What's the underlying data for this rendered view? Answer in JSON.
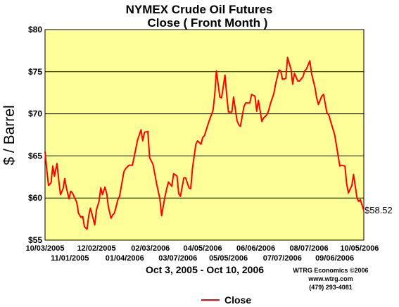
{
  "chart_data": {
    "type": "line",
    "title": "NYMEX Crude Oil Futures",
    "subtitle": "Close ( Front Month )",
    "xlabel": "Oct 3, 2005 - Oct 10, 2006",
    "ylabel": "$ / Barrel",
    "ylim": [
      55,
      80
    ],
    "yticks": [
      "$55",
      "$60",
      "$65",
      "$70",
      "$75",
      "$80"
    ],
    "xticks_upper": [
      "10/03/2005",
      "12/02/2005",
      "02/03/2006",
      "04/05/2006",
      "06/06/2006",
      "08/07/2006",
      "10/05/2006"
    ],
    "xticks_lower": [
      "11/01/2005",
      "01/04/2006",
      "03/07/2006",
      "05/05/2006",
      "07/07/2006",
      "09/06/2006"
    ],
    "x_start": "2005-10-03",
    "x_end": "2006-10-10",
    "grid": true,
    "legend": "bottom",
    "end_label": "$58.52",
    "credit": [
      "WTRG Economics ©2006",
      "www.wtrg.com",
      "(479) 293-4081"
    ],
    "colors": {
      "plot_background": "#ffff99",
      "line": "#ff0000"
    },
    "series": [
      {
        "name": "Close",
        "points": [
          [
            "2005-10-03",
            65.5
          ],
          [
            "2005-10-05",
            63.4
          ],
          [
            "2005-10-07",
            61.5
          ],
          [
            "2005-10-10",
            61.8
          ],
          [
            "2005-10-12",
            63.8
          ],
          [
            "2005-10-14",
            62.6
          ],
          [
            "2005-10-17",
            64.1
          ],
          [
            "2005-10-19",
            62.1
          ],
          [
            "2005-10-21",
            60.4
          ],
          [
            "2005-10-24",
            61.1
          ],
          [
            "2005-10-26",
            62.3
          ],
          [
            "2005-10-28",
            61.2
          ],
          [
            "2005-10-31",
            59.9
          ],
          [
            "2005-11-02",
            60.8
          ],
          [
            "2005-11-04",
            60.6
          ],
          [
            "2005-11-07",
            59.9
          ],
          [
            "2005-11-09",
            59.5
          ],
          [
            "2005-11-11",
            58.2
          ],
          [
            "2005-11-14",
            57.7
          ],
          [
            "2005-11-16",
            57.8
          ],
          [
            "2005-11-18",
            56.6
          ],
          [
            "2005-11-21",
            56.3
          ],
          [
            "2005-11-23",
            57.9
          ],
          [
            "2005-11-25",
            58.8
          ],
          [
            "2005-11-28",
            57.6
          ],
          [
            "2005-11-30",
            56.8
          ],
          [
            "2005-12-02",
            58.6
          ],
          [
            "2005-12-05",
            59.6
          ],
          [
            "2005-12-07",
            61.2
          ],
          [
            "2005-12-09",
            60.4
          ],
          [
            "2005-12-12",
            61.3
          ],
          [
            "2005-12-14",
            60.5
          ],
          [
            "2005-12-16",
            58.9
          ],
          [
            "2005-12-19",
            57.6
          ],
          [
            "2005-12-21",
            58.0
          ],
          [
            "2005-12-23",
            58.2
          ],
          [
            "2005-12-27",
            59.8
          ],
          [
            "2005-12-29",
            60.2
          ],
          [
            "2006-01-03",
            63.1
          ],
          [
            "2006-01-05",
            63.5
          ],
          [
            "2006-01-09",
            63.9
          ],
          [
            "2006-01-11",
            63.9
          ],
          [
            "2006-01-13",
            63.9
          ],
          [
            "2006-01-17",
            65.9
          ],
          [
            "2006-01-19",
            66.9
          ],
          [
            "2006-01-23",
            68.1
          ],
          [
            "2006-01-25",
            66.8
          ],
          [
            "2006-01-27",
            67.8
          ],
          [
            "2006-01-31",
            67.9
          ],
          [
            "2006-02-02",
            64.8
          ],
          [
            "2006-02-06",
            64.0
          ],
          [
            "2006-02-08",
            62.9
          ],
          [
            "2006-02-10",
            61.8
          ],
          [
            "2006-02-14",
            59.9
          ],
          [
            "2006-02-16",
            57.9
          ],
          [
            "2006-02-20",
            60.2
          ],
          [
            "2006-02-22",
            61.1
          ],
          [
            "2006-02-24",
            61.9
          ],
          [
            "2006-02-28",
            61.4
          ],
          [
            "2006-03-02",
            62.9
          ],
          [
            "2006-03-06",
            62.6
          ],
          [
            "2006-03-08",
            60.5
          ],
          [
            "2006-03-10",
            60.2
          ],
          [
            "2006-03-14",
            62.4
          ],
          [
            "2006-03-16",
            62.4
          ],
          [
            "2006-03-20",
            61.2
          ],
          [
            "2006-03-22",
            61.1
          ],
          [
            "2006-03-24",
            63.5
          ],
          [
            "2006-03-28",
            66.4
          ],
          [
            "2006-03-30",
            66.8
          ],
          [
            "2006-04-03",
            66.4
          ],
          [
            "2006-04-05",
            67.2
          ],
          [
            "2006-04-07",
            67.4
          ],
          [
            "2006-04-11",
            68.7
          ],
          [
            "2006-04-13",
            69.3
          ],
          [
            "2006-04-17",
            70.4
          ],
          [
            "2006-04-19",
            72.2
          ],
          [
            "2006-04-21",
            75.1
          ],
          [
            "2006-04-25",
            72.0
          ],
          [
            "2006-04-27",
            71.9
          ],
          [
            "2006-05-01",
            74.6
          ],
          [
            "2006-05-03",
            72.2
          ],
          [
            "2006-05-05",
            70.2
          ],
          [
            "2006-05-09",
            70.2
          ],
          [
            "2006-05-11",
            72.0
          ],
          [
            "2006-05-15",
            69.2
          ],
          [
            "2006-05-17",
            68.7
          ],
          [
            "2006-05-19",
            68.5
          ],
          [
            "2006-05-23",
            70.8
          ],
          [
            "2006-05-25",
            71.3
          ],
          [
            "2006-05-30",
            71.3
          ],
          [
            "2006-06-01",
            72.3
          ],
          [
            "2006-06-05",
            72.1
          ],
          [
            "2006-06-07",
            70.3
          ],
          [
            "2006-06-09",
            71.6
          ],
          [
            "2006-06-13",
            69.1
          ],
          [
            "2006-06-15",
            69.5
          ],
          [
            "2006-06-19",
            69.9
          ],
          [
            "2006-06-21",
            70.4
          ],
          [
            "2006-06-23",
            71.2
          ],
          [
            "2006-06-27",
            72.4
          ],
          [
            "2006-06-29",
            73.5
          ],
          [
            "2006-07-03",
            75.2
          ],
          [
            "2006-07-05",
            75.1
          ],
          [
            "2006-07-07",
            74.1
          ],
          [
            "2006-07-11",
            74.2
          ],
          [
            "2006-07-13",
            76.7
          ],
          [
            "2006-07-17",
            75.3
          ],
          [
            "2006-07-19",
            73.5
          ],
          [
            "2006-07-21",
            74.8
          ],
          [
            "2006-07-25",
            73.9
          ],
          [
            "2006-07-27",
            73.9
          ],
          [
            "2006-07-31",
            74.4
          ],
          [
            "2006-08-02",
            75.1
          ],
          [
            "2006-08-04",
            75.3
          ],
          [
            "2006-08-08",
            76.3
          ],
          [
            "2006-08-10",
            74.8
          ],
          [
            "2006-08-14",
            73.1
          ],
          [
            "2006-08-16",
            71.9
          ],
          [
            "2006-08-18",
            71.1
          ],
          [
            "2006-08-22",
            72.1
          ],
          [
            "2006-08-24",
            72.3
          ],
          [
            "2006-08-28",
            70.1
          ],
          [
            "2006-08-30",
            69.9
          ],
          [
            "2006-09-01",
            69.2
          ],
          [
            "2006-09-06",
            67.5
          ],
          [
            "2006-09-08",
            66.3
          ],
          [
            "2006-09-12",
            63.8
          ],
          [
            "2006-09-14",
            63.9
          ],
          [
            "2006-09-18",
            63.8
          ],
          [
            "2006-09-20",
            61.7
          ],
          [
            "2006-09-22",
            60.6
          ],
          [
            "2006-09-26",
            61.5
          ],
          [
            "2006-09-28",
            62.8
          ],
          [
            "2006-10-02",
            60.0
          ],
          [
            "2006-10-04",
            59.6
          ],
          [
            "2006-10-06",
            59.8
          ],
          [
            "2006-10-10",
            58.52
          ]
        ]
      }
    ]
  }
}
